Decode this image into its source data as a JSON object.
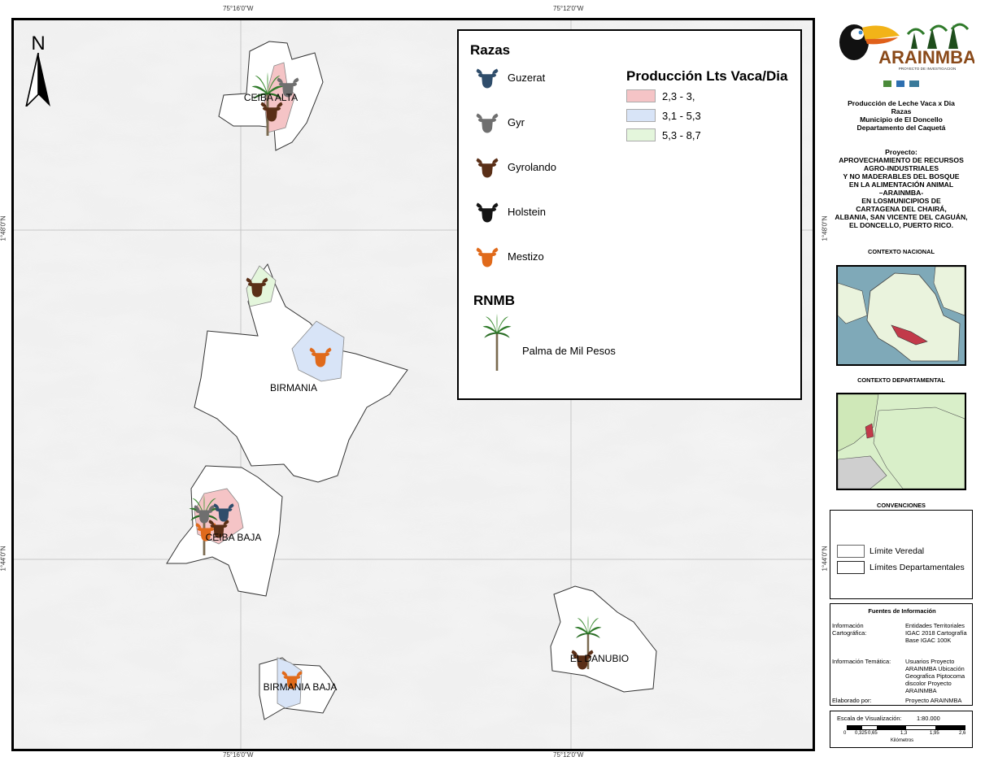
{
  "coords": {
    "top_left": "75°16'0\"W",
    "top_right": "75°12'0\"W",
    "bottom_left": "75°16'0\"W",
    "bottom_right": "75°12'0\"W",
    "left_upper": "1°48'0\"N",
    "left_lower": "1°44'0\"N",
    "right_upper": "1°48'0\"N",
    "right_lower": "1°44'0\"N"
  },
  "north_arrow": {
    "label": "N"
  },
  "veredas": [
    "CEIBA ALTA",
    "BIRMANIA",
    "CEIBA  BAJA",
    "BIRMANIA BAJA",
    "EL DANUBIO"
  ],
  "legend": {
    "razas_title": "Razas",
    "breeds": [
      {
        "name": "Guzerat",
        "color": "#2f4d6b"
      },
      {
        "name": "Gyr",
        "color": "#6f6f6f"
      },
      {
        "name": "Gyrolando",
        "color": "#5a2f17"
      },
      {
        "name": "Holstein",
        "color": "#141414"
      },
      {
        "name": "Mestizo",
        "color": "#e06a1b"
      }
    ],
    "produccion_title": "Producción Lts Vaca/Dia",
    "classes": [
      {
        "label": "2,3 - 3,",
        "color": "#f5c4c6"
      },
      {
        "label": "3,1 - 5,3",
        "color": "#d8e4f7"
      },
      {
        "label": "5,3 - 8,7",
        "color": "#e4f6dc"
      }
    ],
    "rnmb_title": "RNMB",
    "palma_label": "Palma de Mil Pesos"
  },
  "side": {
    "logo_text": "ARAINMBA",
    "logo_subtitle": "PROYECTO DE INVESTIGACION",
    "title_lines": [
      "Producción de Leche Vaca x Dia",
      "Razas",
      "Municipio de El Doncello",
      "Departamento del Caquetá"
    ],
    "project_lines": [
      "Proyecto:",
      "APROVECHAMIENTO DE RECURSOS",
      "AGRO-INDUSTRIALES",
      "Y NO MADERABLES DEL BOSQUE",
      "EN LA ALIMENTACIÓN ANIMAL",
      "–ARAINMBA-",
      "EN LOSMUNICIPIOS DE",
      "CARTAGENA DEL CHAIRÁ,",
      "ALBANIA, SAN VICENTE DEL CAGUÁN,",
      "EL DONCELLO, PUERTO RICO."
    ],
    "contexto_nacional": "CONTEXTO NACIONAL",
    "contexto_departamental": "CONTEXTO DEPARTAMENTAL",
    "convenciones": "CONVENCIONES",
    "conv_items": [
      "Límite Veredal",
      "Límites Departamentales"
    ],
    "fuentes_title": "Fuentes de Información",
    "fuentes": [
      {
        "k": "Información Cartográfica:",
        "v": "Entidades Territoriales IGAC 2018 Cartografía Base IGAC 100K"
      },
      {
        "k": "Información Temática:",
        "v": "Usuarios Proyecto ARAINMBA Ubicación Geografica Piptocoma discolor Proyecto ARAINMBA"
      },
      {
        "k": "Elaborado por:",
        "v": "Proyecto ARAINMBA"
      }
    ],
    "escala_label": "Escala de Visualización:",
    "escala_value": "1:80.000",
    "scale_ticks": [
      "0",
      "0,325",
      "0,65",
      "1,3",
      "1,95",
      "2,6"
    ],
    "scale_unit": "Kilómetros"
  }
}
